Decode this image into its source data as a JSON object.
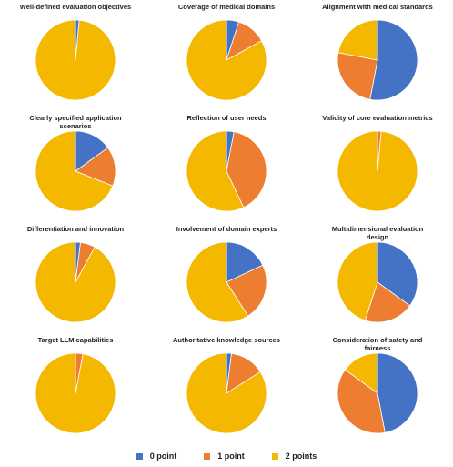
{
  "colors": {
    "0 point": "#4472c4",
    "1 point": "#ed7d31",
    "2 points": "#f5b800"
  },
  "legend": [
    {
      "label": "0 point",
      "color": "#4472c4"
    },
    {
      "label": "1 point",
      "color": "#ed7d31"
    },
    {
      "label": "2 points",
      "color": "#f5b800"
    }
  ],
  "chart_data": [
    {
      "type": "pie",
      "title": "Well-defined evaluation objectives",
      "labels": [
        "0 point",
        "1 point",
        "2 points"
      ],
      "values": [
        1.5,
        0,
        98.5
      ]
    },
    {
      "type": "pie",
      "title": "Coverage of medical domains",
      "labels": [
        "0 point",
        "1 point",
        "2 points"
      ],
      "values": [
        5,
        12,
        83
      ]
    },
    {
      "type": "pie",
      "title": "Alignment with medical standards",
      "labels": [
        "0 point",
        "1 point",
        "2 points"
      ],
      "values": [
        53,
        25,
        22
      ]
    },
    {
      "type": "pie",
      "title": "Clearly specified application scenarios",
      "labels": [
        "0 point",
        "1 point",
        "2 points"
      ],
      "values": [
        15,
        16,
        69
      ]
    },
    {
      "type": "pie",
      "title": "Reflection of user needs",
      "labels": [
        "0 point",
        "1 point",
        "2 points"
      ],
      "values": [
        3,
        40,
        57
      ]
    },
    {
      "type": "pie",
      "title": "Validity of core evaluation metrics",
      "labels": [
        "0 point",
        "1 point",
        "2 points"
      ],
      "values": [
        0,
        1.5,
        98.5
      ]
    },
    {
      "type": "pie",
      "title": "Differentiation and innovation",
      "labels": [
        "0 point",
        "1 point",
        "2 points"
      ],
      "values": [
        2,
        6,
        92
      ]
    },
    {
      "type": "pie",
      "title": "Involvement of domain experts",
      "labels": [
        "0 point",
        "1 point",
        "2 points"
      ],
      "values": [
        18,
        23,
        59
      ]
    },
    {
      "type": "pie",
      "title": "Multidimensional evaluation design",
      "labels": [
        "0 point",
        "1 point",
        "2 points"
      ],
      "values": [
        35,
        20,
        45
      ]
    },
    {
      "type": "pie",
      "title": "Target LLM capabilities",
      "labels": [
        "0 point",
        "1 point",
        "2 points"
      ],
      "values": [
        0,
        3,
        97
      ]
    },
    {
      "type": "pie",
      "title": "Authoritative knowledge sources",
      "labels": [
        "0 point",
        "1 point",
        "2 points"
      ],
      "values": [
        2,
        14,
        84
      ]
    },
    {
      "type": "pie",
      "title": "Consideration of safety and fairness",
      "labels": [
        "0 point",
        "1 point",
        "2 points"
      ],
      "values": [
        47,
        38,
        15
      ]
    }
  ]
}
